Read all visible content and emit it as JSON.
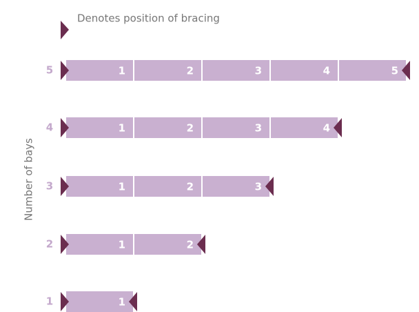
{
  "legend": {
    "text": "Denotes position of bracing"
  },
  "axis_label": "Number of bays",
  "rows": [
    {
      "label": "5",
      "bays": [
        "1",
        "2",
        "3",
        "4",
        "5"
      ]
    },
    {
      "label": "4",
      "bays": [
        "1",
        "2",
        "3",
        "4"
      ]
    },
    {
      "label": "3",
      "bays": [
        "1",
        "2",
        "3"
      ]
    },
    {
      "label": "2",
      "bays": [
        "1",
        "2"
      ]
    },
    {
      "label": "1",
      "bays": [
        "1"
      ]
    }
  ]
}
